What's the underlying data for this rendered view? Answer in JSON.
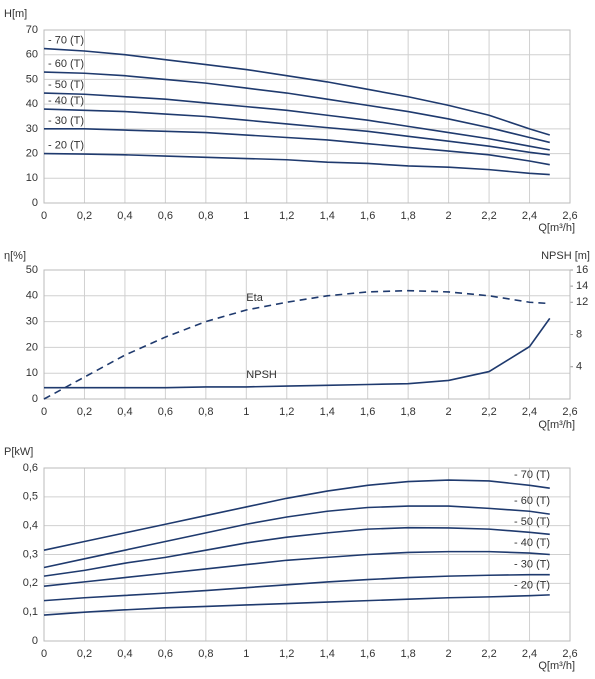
{
  "chart_data": [
    {
      "type": "line",
      "ylabel": "H[m]",
      "xlabel": "Q[m³/h]",
      "grid": true,
      "legend": "left",
      "x": [
        0,
        0.2,
        0.4,
        0.6,
        0.8,
        1.0,
        1.2,
        1.4,
        1.6,
        1.8,
        2.0,
        2.2,
        2.4,
        2.5
      ],
      "xlim": [
        0,
        2.6
      ],
      "ylim": [
        0,
        70
      ],
      "xticks": [
        0,
        {
          "value": 0.2,
          "label": "0,2"
        },
        {
          "value": 0.4,
          "label": "0,4"
        },
        {
          "value": 0.6,
          "label": "0,6"
        },
        {
          "value": 0.8,
          "label": "0,8"
        },
        1,
        {
          "value": 1.2,
          "label": "1,2"
        },
        {
          "value": 1.4,
          "label": "1,4"
        },
        {
          "value": 1.6,
          "label": "1,6"
        },
        {
          "value": 1.8,
          "label": "1,8"
        },
        2,
        {
          "value": 2.2,
          "label": "2,2"
        },
        {
          "value": 2.4,
          "label": "2,4"
        },
        {
          "value": 2.6,
          "label": "2,6"
        }
      ],
      "yticks": [
        0,
        10,
        20,
        30,
        40,
        50,
        60,
        70
      ],
      "series": [
        {
          "name": "- 70 (T)",
          "color": "#1f3a6e",
          "values": [
            62.5,
            61.5,
            60,
            58,
            56,
            54,
            51.5,
            49,
            46,
            43,
            39.5,
            35.5,
            30,
            27.5
          ]
        },
        {
          "name": "- 60 (T)",
          "color": "#1f3a6e",
          "values": [
            53,
            52.5,
            51.5,
            50,
            48.5,
            46.5,
            44.5,
            42,
            39.5,
            37,
            34,
            30.5,
            26.5,
            24.5
          ]
        },
        {
          "name": "- 50 (T)",
          "color": "#1f3a6e",
          "values": [
            44.5,
            44,
            43,
            42,
            40.5,
            39,
            37.5,
            35.5,
            33.5,
            31,
            28.5,
            26,
            23,
            21.5
          ]
        },
        {
          "name": "- 40 (T)",
          "color": "#1f3a6e",
          "values": [
            38,
            37.5,
            37,
            36,
            35,
            33.5,
            32,
            30.5,
            29,
            27,
            25,
            23,
            20.5,
            19.5
          ]
        },
        {
          "name": "- 30 (T)",
          "color": "#1f3a6e",
          "values": [
            30,
            30,
            29.5,
            29,
            28.5,
            27.5,
            26.5,
            25.5,
            24,
            22.5,
            21,
            19.5,
            17,
            15.5
          ]
        },
        {
          "name": "- 20 (T)",
          "color": "#1f3a6e",
          "values": [
            20,
            19.8,
            19.5,
            19,
            18.5,
            18,
            17.5,
            16.5,
            16,
            15,
            14.5,
            13.5,
            12,
            11.5
          ]
        }
      ]
    },
    {
      "type": "line",
      "ylabel": "η[%]",
      "y2label": "NPSH [m]",
      "xlabel": "Q[m³/h]",
      "grid": true,
      "legend": "inline",
      "x": [
        0,
        0.2,
        0.4,
        0.6,
        0.8,
        1.0,
        1.2,
        1.4,
        1.6,
        1.8,
        2.0,
        2.2,
        2.4,
        2.5
      ],
      "xlim": [
        0,
        2.6
      ],
      "ylim": [
        0,
        50
      ],
      "y2lim": [
        0,
        16
      ],
      "xticks": [
        0,
        {
          "value": 0.2,
          "label": "0,2"
        },
        {
          "value": 0.4,
          "label": "0,4"
        },
        {
          "value": 0.6,
          "label": "0,6"
        },
        {
          "value": 0.8,
          "label": "0,8"
        },
        1,
        {
          "value": 1.2,
          "label": "1,2"
        },
        {
          "value": 1.4,
          "label": "1,4"
        },
        {
          "value": 1.6,
          "label": "1,6"
        },
        {
          "value": 1.8,
          "label": "1,8"
        },
        2,
        {
          "value": 2.2,
          "label": "2,2"
        },
        {
          "value": 2.4,
          "label": "2,4"
        },
        {
          "value": 2.6,
          "label": "2,6"
        }
      ],
      "yticks": [
        0,
        10,
        20,
        30,
        40,
        50
      ],
      "y2ticks": [
        4,
        8,
        12,
        14,
        16
      ],
      "series": [
        {
          "name": "Eta",
          "color": "#1f3a6e",
          "style": "dashed",
          "values": [
            0,
            8.5,
            17,
            24,
            30,
            34.5,
            37.5,
            40,
            41.5,
            42,
            41.5,
            40,
            37.5,
            37
          ]
        },
        {
          "name": "NPSH",
          "color": "#1f3a6e",
          "style": "solid",
          "axis": "y2",
          "values": [
            1.4,
            1.4,
            1.4,
            1.4,
            1.5,
            1.5,
            1.6,
            1.7,
            1.8,
            1.9,
            2.3,
            3.4,
            6.5,
            10
          ]
        }
      ]
    },
    {
      "type": "line",
      "ylabel": "P[kW]",
      "xlabel": "Q[m³/h]",
      "grid": true,
      "legend": "right",
      "x": [
        0,
        0.2,
        0.4,
        0.6,
        0.8,
        1.0,
        1.2,
        1.4,
        1.6,
        1.8,
        2.0,
        2.2,
        2.4,
        2.5
      ],
      "xlim": [
        0,
        2.6
      ],
      "ylim": [
        0,
        0.6
      ],
      "xticks": [
        0,
        {
          "value": 0.2,
          "label": "0,2"
        },
        {
          "value": 0.4,
          "label": "0,4"
        },
        {
          "value": 0.6,
          "label": "0,6"
        },
        {
          "value": 0.8,
          "label": "0,8"
        },
        1,
        {
          "value": 1.2,
          "label": "1,2"
        },
        {
          "value": 1.4,
          "label": "1,4"
        },
        {
          "value": 1.6,
          "label": "1,6"
        },
        {
          "value": 1.8,
          "label": "1,8"
        },
        2,
        {
          "value": 2.2,
          "label": "2,2"
        },
        {
          "value": 2.4,
          "label": "2,4"
        },
        {
          "value": 2.6,
          "label": "2,6"
        }
      ],
      "yticks": [
        0,
        {
          "value": 0.1,
          "label": "0,1"
        },
        {
          "value": 0.2,
          "label": "0,2"
        },
        {
          "value": 0.3,
          "label": "0,3"
        },
        {
          "value": 0.4,
          "label": "0,4"
        },
        {
          "value": 0.5,
          "label": "0,5"
        },
        {
          "value": 0.6,
          "label": "0,6"
        }
      ],
      "series": [
        {
          "name": "- 70 (T)",
          "color": "#1f3a6e",
          "values": [
            0.315,
            0.345,
            0.375,
            0.405,
            0.435,
            0.465,
            0.495,
            0.52,
            0.54,
            0.553,
            0.558,
            0.555,
            0.54,
            0.53
          ]
        },
        {
          "name": "- 60 (T)",
          "color": "#1f3a6e",
          "values": [
            0.255,
            0.285,
            0.315,
            0.345,
            0.375,
            0.405,
            0.43,
            0.45,
            0.463,
            0.468,
            0.468,
            0.46,
            0.45,
            0.44
          ]
        },
        {
          "name": "- 50 (T)",
          "color": "#1f3a6e",
          "values": [
            0.225,
            0.245,
            0.27,
            0.29,
            0.315,
            0.34,
            0.36,
            0.375,
            0.388,
            0.393,
            0.392,
            0.388,
            0.377,
            0.37
          ]
        },
        {
          "name": "- 40 (T)",
          "color": "#1f3a6e",
          "values": [
            0.19,
            0.205,
            0.22,
            0.235,
            0.25,
            0.265,
            0.28,
            0.29,
            0.3,
            0.307,
            0.31,
            0.31,
            0.305,
            0.3
          ]
        },
        {
          "name": "- 30 (T)",
          "color": "#1f3a6e",
          "values": [
            0.14,
            0.15,
            0.158,
            0.166,
            0.175,
            0.185,
            0.195,
            0.205,
            0.213,
            0.22,
            0.225,
            0.228,
            0.23,
            0.23
          ]
        },
        {
          "name": "- 20 (T)",
          "color": "#1f3a6e",
          "values": [
            0.09,
            0.1,
            0.108,
            0.115,
            0.12,
            0.125,
            0.13,
            0.135,
            0.14,
            0.145,
            0.15,
            0.153,
            0.157,
            0.16
          ]
        }
      ]
    }
  ]
}
